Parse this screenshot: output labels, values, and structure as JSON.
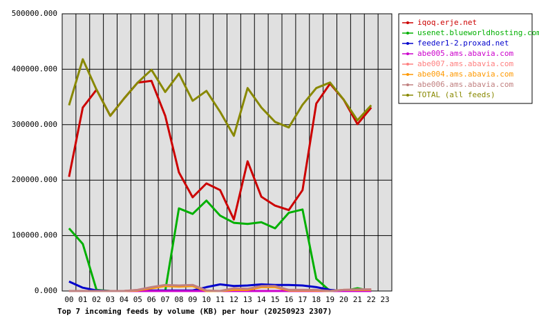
{
  "chart_data": {
    "type": "line",
    "title": "Top 7 incoming feeds by volume (KB) per hour (20250923 2307)",
    "categories": [
      "00",
      "01",
      "02",
      "03",
      "04",
      "05",
      "06",
      "07",
      "08",
      "09",
      "10",
      "11",
      "12",
      "13",
      "14",
      "15",
      "16",
      "17",
      "18",
      "19",
      "20",
      "21",
      "22",
      "23"
    ],
    "ylim": [
      0,
      500000
    ],
    "yticks": [
      {
        "value": 0,
        "label": "0.000"
      },
      {
        "value": 100000,
        "label": "100000.000"
      },
      {
        "value": 200000,
        "label": "200000.000"
      },
      {
        "value": 300000,
        "label": "300000.000"
      },
      {
        "value": 400000,
        "label": "400000.000"
      },
      {
        "value": 500000,
        "label": "500000.000"
      }
    ],
    "grid": true,
    "legend": "right",
    "series": [
      {
        "name": "iqoq.erje.net",
        "color": "#cc0000",
        "values": [
          206000,
          331000,
          363000,
          316000,
          347000,
          376000,
          379000,
          316000,
          214000,
          169000,
          194000,
          182000,
          129000,
          234000,
          170000,
          154000,
          146000,
          182000,
          338000,
          374000,
          345000,
          301000,
          331000,
          null
        ]
      },
      {
        "name": "usenet.blueworldhosting.com",
        "color": "#00b000",
        "values": [
          113000,
          85000,
          2000,
          0,
          0,
          0,
          0,
          0,
          149000,
          139000,
          163000,
          136000,
          123000,
          121000,
          124000,
          113000,
          141000,
          147000,
          22000,
          0,
          0,
          5000,
          0,
          null
        ]
      },
      {
        "name": "feeder1-2.proxad.net",
        "color": "#0000cc",
        "values": [
          17000,
          6000,
          1000,
          0,
          0,
          1000,
          1000,
          1000,
          1000,
          1000,
          7000,
          12000,
          9000,
          10000,
          12000,
          11000,
          11000,
          10000,
          7000,
          2000,
          0,
          0,
          0,
          null
        ]
      },
      {
        "name": "abe005.ams.abavia.com",
        "color": "#cc00cc",
        "values": [
          0,
          0,
          0,
          0,
          0,
          0,
          0,
          0,
          0,
          0,
          0,
          0,
          0,
          0,
          0,
          0,
          0,
          0,
          0,
          0,
          0,
          0,
          0,
          null
        ]
      },
      {
        "name": "abe007.ams.abavia.com",
        "color": "#ff8080",
        "values": [
          0,
          0,
          0,
          0,
          0,
          2000,
          6000,
          10000,
          9000,
          10000,
          0,
          0,
          3000,
          3000,
          8000,
          8000,
          2000,
          2000,
          1000,
          0,
          2000,
          2000,
          3000,
          null
        ]
      },
      {
        "name": "abe004.ams.abavia.com",
        "color": "#ff9900",
        "values": [
          0,
          0,
          0,
          0,
          0,
          1000,
          5000,
          9000,
          8000,
          9000,
          0,
          0,
          2000,
          2000,
          7000,
          7000,
          1000,
          1000,
          1000,
          0,
          2000,
          2000,
          2000,
          null
        ]
      },
      {
        "name": "abe006.ams.abavia.com",
        "color": "#c08080",
        "values": [
          0,
          0,
          0,
          0,
          0,
          2000,
          7000,
          11000,
          10000,
          11000,
          1000,
          0,
          5000,
          4000,
          9000,
          9000,
          2000,
          2000,
          2000,
          0,
          2000,
          3000,
          3000,
          null
        ]
      },
      {
        "name": "TOTAL (all feeds)",
        "color": "#888800",
        "values": [
          335000,
          418000,
          363000,
          316000,
          347000,
          376000,
          399000,
          359000,
          392000,
          343000,
          361000,
          323000,
          280000,
          366000,
          331000,
          305000,
          295000,
          336000,
          366000,
          376000,
          345000,
          308000,
          335000,
          null
        ]
      }
    ]
  }
}
